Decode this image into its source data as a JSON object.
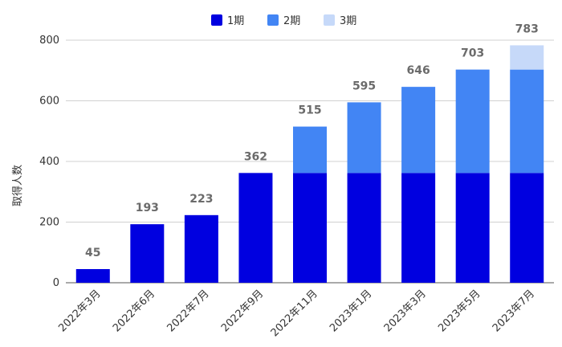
{
  "chart_data": {
    "type": "bar",
    "stacked": true,
    "title": "",
    "xlabel": "",
    "ylabel": "取得人数",
    "ylim": [
      0,
      800
    ],
    "yticks": [
      0,
      200,
      400,
      600,
      800
    ],
    "grid": true,
    "legend": "top-center",
    "categories": [
      "2022年3月",
      "2022年6月",
      "2022年7月",
      "2022年9月",
      "2022年11月",
      "2023年1月",
      "2023年3月",
      "2023年5月",
      "2023年7月"
    ],
    "series": [
      {
        "name": "1期",
        "color": "#0000e0",
        "values": [
          45,
          193,
          223,
          362,
          362,
          362,
          362,
          362,
          362
        ]
      },
      {
        "name": "2期",
        "color": "#4285f4",
        "values": [
          0,
          0,
          0,
          0,
          153,
          233,
          284,
          341,
          341
        ]
      },
      {
        "name": "3期",
        "color": "#c6d9f9",
        "values": [
          0,
          0,
          0,
          0,
          0,
          0,
          0,
          0,
          80
        ]
      }
    ],
    "totals": [
      45,
      193,
      223,
      362,
      515,
      595,
      646,
      703,
      783
    ]
  }
}
